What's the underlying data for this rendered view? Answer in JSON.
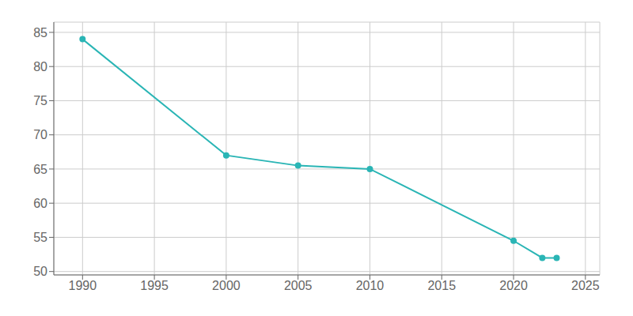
{
  "chart_data": {
    "type": "line",
    "x": [
      1990,
      2000,
      2005,
      2010,
      2020,
      2022,
      2023
    ],
    "values": [
      84,
      67,
      65.5,
      65,
      54.5,
      52,
      52
    ],
    "color": "#2ab5b5",
    "marker": "circle",
    "xlim": [
      1988,
      2026
    ],
    "ylim": [
      49.5,
      86.5
    ],
    "xticks": [
      1990,
      1995,
      2000,
      2005,
      2010,
      2015,
      2020,
      2025
    ],
    "yticks": [
      50,
      55,
      60,
      65,
      70,
      75,
      80,
      85
    ],
    "grid": true
  }
}
